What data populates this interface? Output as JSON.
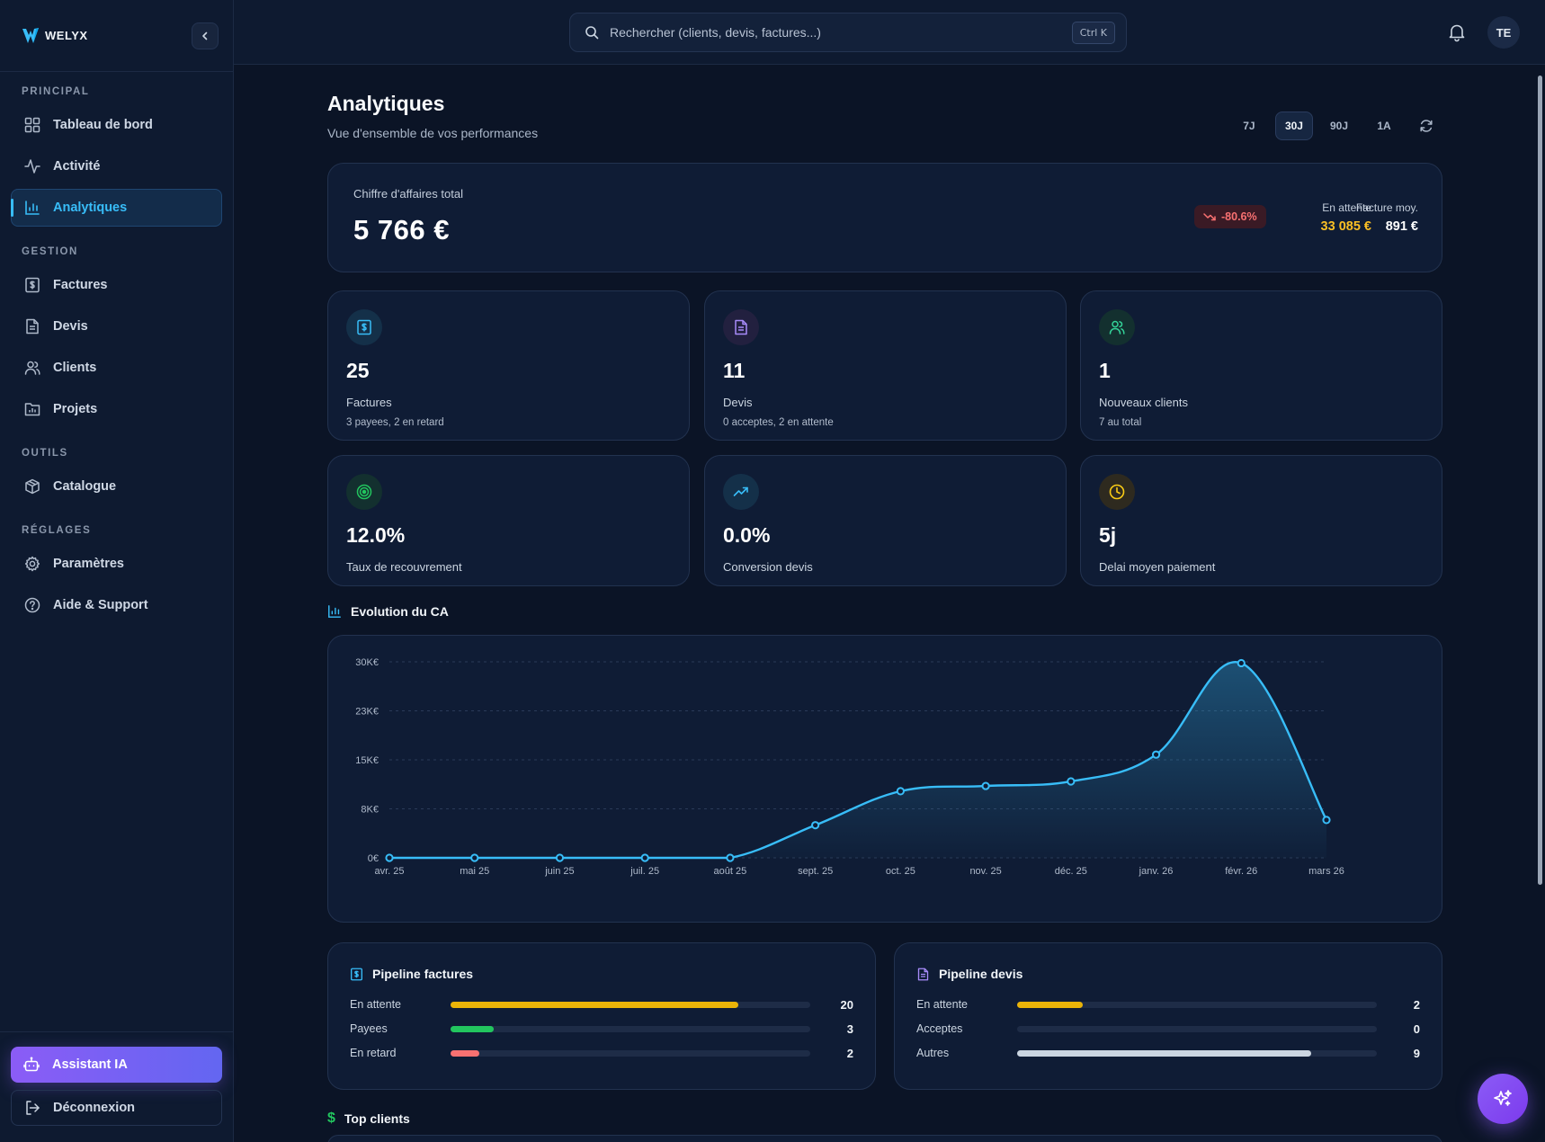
{
  "app": {
    "logo_text": "WELYX"
  },
  "sidebar": {
    "sections": [
      {
        "title": "PRINCIPAL",
        "items": [
          {
            "label": "Tableau de bord",
            "icon": "grid-icon"
          },
          {
            "label": "Activité",
            "icon": "activity-icon"
          },
          {
            "label": "Analytiques",
            "icon": "bar-chart-icon",
            "active": true
          }
        ]
      },
      {
        "title": "GESTION",
        "items": [
          {
            "label": "Factures",
            "icon": "invoice-icon"
          },
          {
            "label": "Devis",
            "icon": "document-icon"
          },
          {
            "label": "Clients",
            "icon": "users-icon"
          },
          {
            "label": "Projets",
            "icon": "folder-chart-icon"
          }
        ]
      },
      {
        "title": "OUTILS",
        "items": [
          {
            "label": "Catalogue",
            "icon": "box-icon"
          }
        ]
      },
      {
        "title": "RÉGLAGES",
        "items": [
          {
            "label": "Paramètres",
            "icon": "gear-icon"
          },
          {
            "label": "Aide & Support",
            "icon": "help-icon"
          }
        ]
      }
    ],
    "assistant_label": "Assistant IA",
    "logout_label": "Déconnexion"
  },
  "topbar": {
    "search_placeholder": "Rechercher (clients, devis, factures...)",
    "shortcut": "Ctrl K",
    "avatar_initials": "TE"
  },
  "page": {
    "title": "Analytiques",
    "subtitle": "Vue d'ensemble de vos performances",
    "periods": [
      "7J",
      "30J",
      "90J",
      "1A"
    ],
    "active_period": "30J"
  },
  "revenue": {
    "label": "Chiffre d'affaires total",
    "value": "5 766 €",
    "change": "-80.6%",
    "pending_label": "En attente",
    "pending_value": "33 085 €",
    "avg_label": "Facture moy.",
    "avg_value": "891 €",
    "colors": {
      "pending": "#fbbf24",
      "negative": "#f87171"
    }
  },
  "kpis": [
    {
      "value": "25",
      "label": "Factures",
      "sub": "3 payees, 2 en retard",
      "icon": "invoice-icon",
      "color": "#38bdf8",
      "bg": "#143049"
    },
    {
      "value": "11",
      "label": "Devis",
      "sub": "0 acceptes, 2 en attente",
      "icon": "document-icon",
      "color": "#a78bfa",
      "bg": "#22203f"
    },
    {
      "value": "1",
      "label": "Nouveaux clients",
      "sub": "7 au total",
      "icon": "users-icon",
      "color": "#34d399",
      "bg": "#13302f"
    },
    {
      "value": "12.0%",
      "label": "Taux de recouvrement",
      "icon": "target-icon",
      "color": "#22c55e",
      "bg": "#13302f"
    },
    {
      "value": "0.0%",
      "label": "Conversion devis",
      "icon": "trend-up-icon",
      "color": "#38bdf8",
      "bg": "#143049"
    },
    {
      "value": "5j",
      "label": "Delai moyen paiement",
      "icon": "clock-icon",
      "color": "#facc15",
      "bg": "#2e2a1f"
    }
  ],
  "chart_section_title": "Evolution du CA",
  "chart_data": {
    "type": "area",
    "x": [
      "avr. 25",
      "mai 25",
      "juin 25",
      "juil. 25",
      "août 25",
      "sept. 25",
      "oct. 25",
      "nov. 25",
      "déc. 25",
      "janv. 26",
      "févr. 26",
      "mars 26"
    ],
    "y_ticks": [
      "0€",
      "8K€",
      "15K€",
      "23K€",
      "30K€"
    ],
    "y_tick_values": [
      0,
      7500,
      15000,
      22500,
      30000
    ],
    "ylim": [
      0,
      30000
    ],
    "series": [
      {
        "values": [
          0,
          0,
          0,
          0,
          0,
          5000,
          10200,
          11000,
          11700,
          15800,
          29800,
          5800
        ],
        "color": "#38bdf8"
      }
    ],
    "grid": true
  },
  "pipeline_invoices": {
    "title": "Pipeline factures",
    "max": 25,
    "rows": [
      {
        "label": "En attente",
        "value": 20,
        "color": "#eab308"
      },
      {
        "label": "Payees",
        "value": 3,
        "color": "#22c55e"
      },
      {
        "label": "En retard",
        "value": 2,
        "color": "#f87171"
      }
    ]
  },
  "pipeline_quotes": {
    "title": "Pipeline devis",
    "max": 11,
    "rows": [
      {
        "label": "En attente",
        "value": 2,
        "color": "#eab308"
      },
      {
        "label": "Acceptes",
        "value": 0,
        "color": "#22c55e"
      },
      {
        "label": "Autres",
        "value": 9,
        "color": "#cbd5e1"
      }
    ]
  },
  "top_clients_title": "Top clients"
}
